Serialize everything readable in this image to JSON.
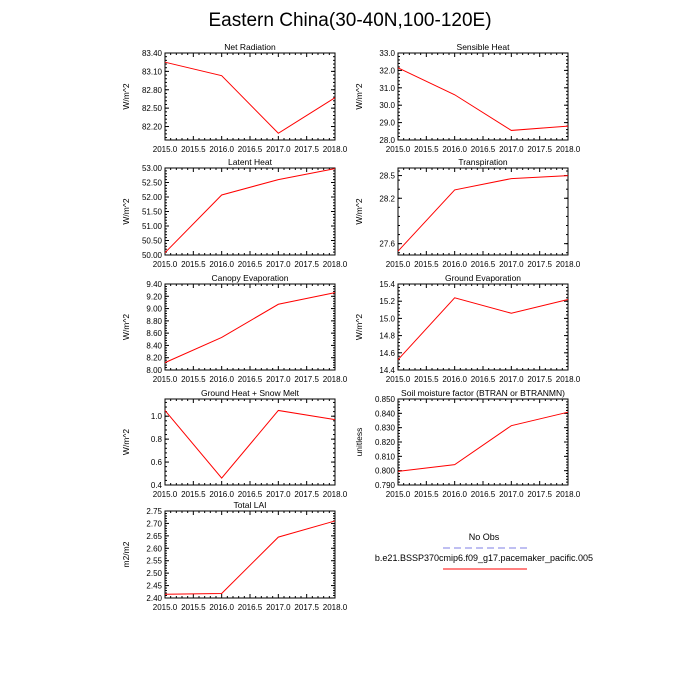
{
  "figure_title": "Eastern China(30-40N,100-120E)",
  "colors": {
    "model": "#ff0000",
    "obs": "#aaaaee",
    "axis": "#000000"
  },
  "legend": {
    "obs_label": "No Obs",
    "model_label": "b.e21.BSSP370cmip6.f09_g17.pacemaker_pacific.005"
  },
  "chart_data": [
    {
      "type": "line",
      "title": "Net Radiation",
      "ylabel": "W/m^2",
      "x": [
        2015,
        2016,
        2017,
        2018
      ],
      "values": [
        83.25,
        83.03,
        82.09,
        82.67
      ],
      "xlim": [
        2015,
        2018
      ],
      "ylim": [
        81.98,
        83.4
      ],
      "xticks": [
        "2015.0",
        "2015.5",
        "2016.0",
        "2016.5",
        "2017.0",
        "2017.5",
        "2018.0"
      ],
      "yticks": [
        "82.20",
        "82.50",
        "82.80",
        "83.10",
        "83.40"
      ],
      "ytick_values": [
        82.2,
        82.5,
        82.8,
        83.1,
        83.4
      ]
    },
    {
      "type": "line",
      "title": "Sensible Heat",
      "ylabel": "W/m^2",
      "x": [
        2015,
        2016,
        2017,
        2018
      ],
      "values": [
        32.15,
        30.6,
        28.55,
        28.8
      ],
      "xlim": [
        2015,
        2018
      ],
      "ylim": [
        28.0,
        33.0
      ],
      "xticks": [
        "2015.0",
        "2015.5",
        "2016.0",
        "2016.5",
        "2017.0",
        "2017.5",
        "2018.0"
      ],
      "yticks": [
        "28.0",
        "29.0",
        "30.0",
        "31.0",
        "32.0",
        "33.0"
      ],
      "ytick_values": [
        28,
        29,
        30,
        31,
        32,
        33
      ]
    },
    {
      "type": "line",
      "title": "Latent Heat",
      "ylabel": "W/m^2",
      "x": [
        2015,
        2016,
        2017,
        2018
      ],
      "values": [
        50.08,
        52.07,
        52.6,
        52.98
      ],
      "xlim": [
        2015,
        2018
      ],
      "ylim": [
        50.0,
        53.0
      ],
      "xticks": [
        "2015.0",
        "2015.5",
        "2016.0",
        "2016.5",
        "2017.0",
        "2017.5",
        "2018.0"
      ],
      "yticks": [
        "50.00",
        "50.50",
        "51.00",
        "51.50",
        "52.00",
        "52.50",
        "53.00"
      ],
      "ytick_values": [
        50,
        50.5,
        51,
        51.5,
        52,
        52.5,
        53
      ]
    },
    {
      "type": "line",
      "title": "Transpiration",
      "ylabel": "W/m^2",
      "x": [
        2015,
        2016,
        2017,
        2018
      ],
      "values": [
        27.5,
        28.31,
        28.46,
        28.5
      ],
      "xlim": [
        2015,
        2018
      ],
      "ylim": [
        27.45,
        28.6
      ],
      "xticks": [
        "2015.0",
        "2015.5",
        "2016.0",
        "2016.5",
        "2017.0",
        "2017.5",
        "2018.0"
      ],
      "yticks": [
        "27.6",
        "28.2",
        "28.5"
      ],
      "ytick_values": [
        27.6,
        28.2,
        28.5
      ]
    },
    {
      "type": "line",
      "title": "Canopy Evaporation",
      "ylabel": "W/m^2",
      "x": [
        2015,
        2016,
        2017,
        2018
      ],
      "values": [
        8.12,
        8.53,
        9.07,
        9.26
      ],
      "xlim": [
        2015,
        2018
      ],
      "ylim": [
        8.0,
        9.4
      ],
      "xticks": [
        "2015.0",
        "2015.5",
        "2016.0",
        "2016.5",
        "2017.0",
        "2017.5",
        "2018.0"
      ],
      "yticks": [
        "8.00",
        "8.20",
        "8.40",
        "8.60",
        "8.80",
        "9.00",
        "9.20",
        "9.40"
      ],
      "ytick_values": [
        8.0,
        8.2,
        8.4,
        8.6,
        8.8,
        9.0,
        9.2,
        9.4
      ]
    },
    {
      "type": "line",
      "title": "Ground Evaporation",
      "ylabel": "W/m^2",
      "x": [
        2015,
        2016,
        2017,
        2018
      ],
      "values": [
        14.52,
        15.24,
        15.06,
        15.22
      ],
      "xlim": [
        2015,
        2018
      ],
      "ylim": [
        14.4,
        15.4
      ],
      "xticks": [
        "2015.0",
        "2015.5",
        "2016.0",
        "2016.5",
        "2017.0",
        "2017.5",
        "2018.0"
      ],
      "yticks": [
        "14.4",
        "14.6",
        "14.8",
        "15.0",
        "15.2",
        "15.4"
      ],
      "ytick_values": [
        14.4,
        14.6,
        14.8,
        15.0,
        15.2,
        15.4
      ]
    },
    {
      "type": "line",
      "title": "Ground Heat + Snow Melt",
      "ylabel": "W/m^2",
      "x": [
        2015,
        2016,
        2017,
        2018
      ],
      "values": [
        1.05,
        0.46,
        1.05,
        0.97
      ],
      "xlim": [
        2015,
        2018
      ],
      "ylim": [
        0.4,
        1.15
      ],
      "xticks": [
        "2015.0",
        "2015.5",
        "2016.0",
        "2016.5",
        "2017.0",
        "2017.5",
        "2018.0"
      ],
      "yticks": [
        "0.4",
        "0.6",
        "0.8",
        "1.0"
      ],
      "ytick_values": [
        0.4,
        0.6,
        0.8,
        1.0
      ]
    },
    {
      "type": "line",
      "title": "Soil moisture factor (BTRAN or BTRANMN)",
      "ylabel": "unitless",
      "x": [
        2015,
        2016,
        2017,
        2018
      ],
      "values": [
        0.7995,
        0.8042,
        0.8314,
        0.8408
      ],
      "xlim": [
        2015,
        2018
      ],
      "ylim": [
        0.79,
        0.85
      ],
      "xticks": [
        "2015.0",
        "2015.5",
        "2016.0",
        "2016.5",
        "2017.0",
        "2017.5",
        "2018.0"
      ],
      "yticks": [
        "0.790",
        "0.800",
        "0.810",
        "0.820",
        "0.830",
        "0.840",
        "0.850"
      ],
      "ytick_values": [
        0.79,
        0.8,
        0.81,
        0.82,
        0.83,
        0.84,
        0.85
      ]
    },
    {
      "type": "line",
      "title": "Total LAI",
      "ylabel": "m2/m2",
      "x": [
        2015,
        2016,
        2017,
        2018
      ],
      "values": [
        2.415,
        2.418,
        2.645,
        2.71
      ],
      "xlim": [
        2015,
        2018
      ],
      "ylim": [
        2.4,
        2.75
      ],
      "xticks": [
        "2015.0",
        "2015.5",
        "2016.0",
        "2016.5",
        "2017.0",
        "2017.5",
        "2018.0"
      ],
      "yticks": [
        "2.40",
        "2.45",
        "2.50",
        "2.55",
        "2.60",
        "2.65",
        "2.70",
        "2.75"
      ],
      "ytick_values": [
        2.4,
        2.45,
        2.5,
        2.55,
        2.6,
        2.65,
        2.7,
        2.75
      ]
    }
  ]
}
